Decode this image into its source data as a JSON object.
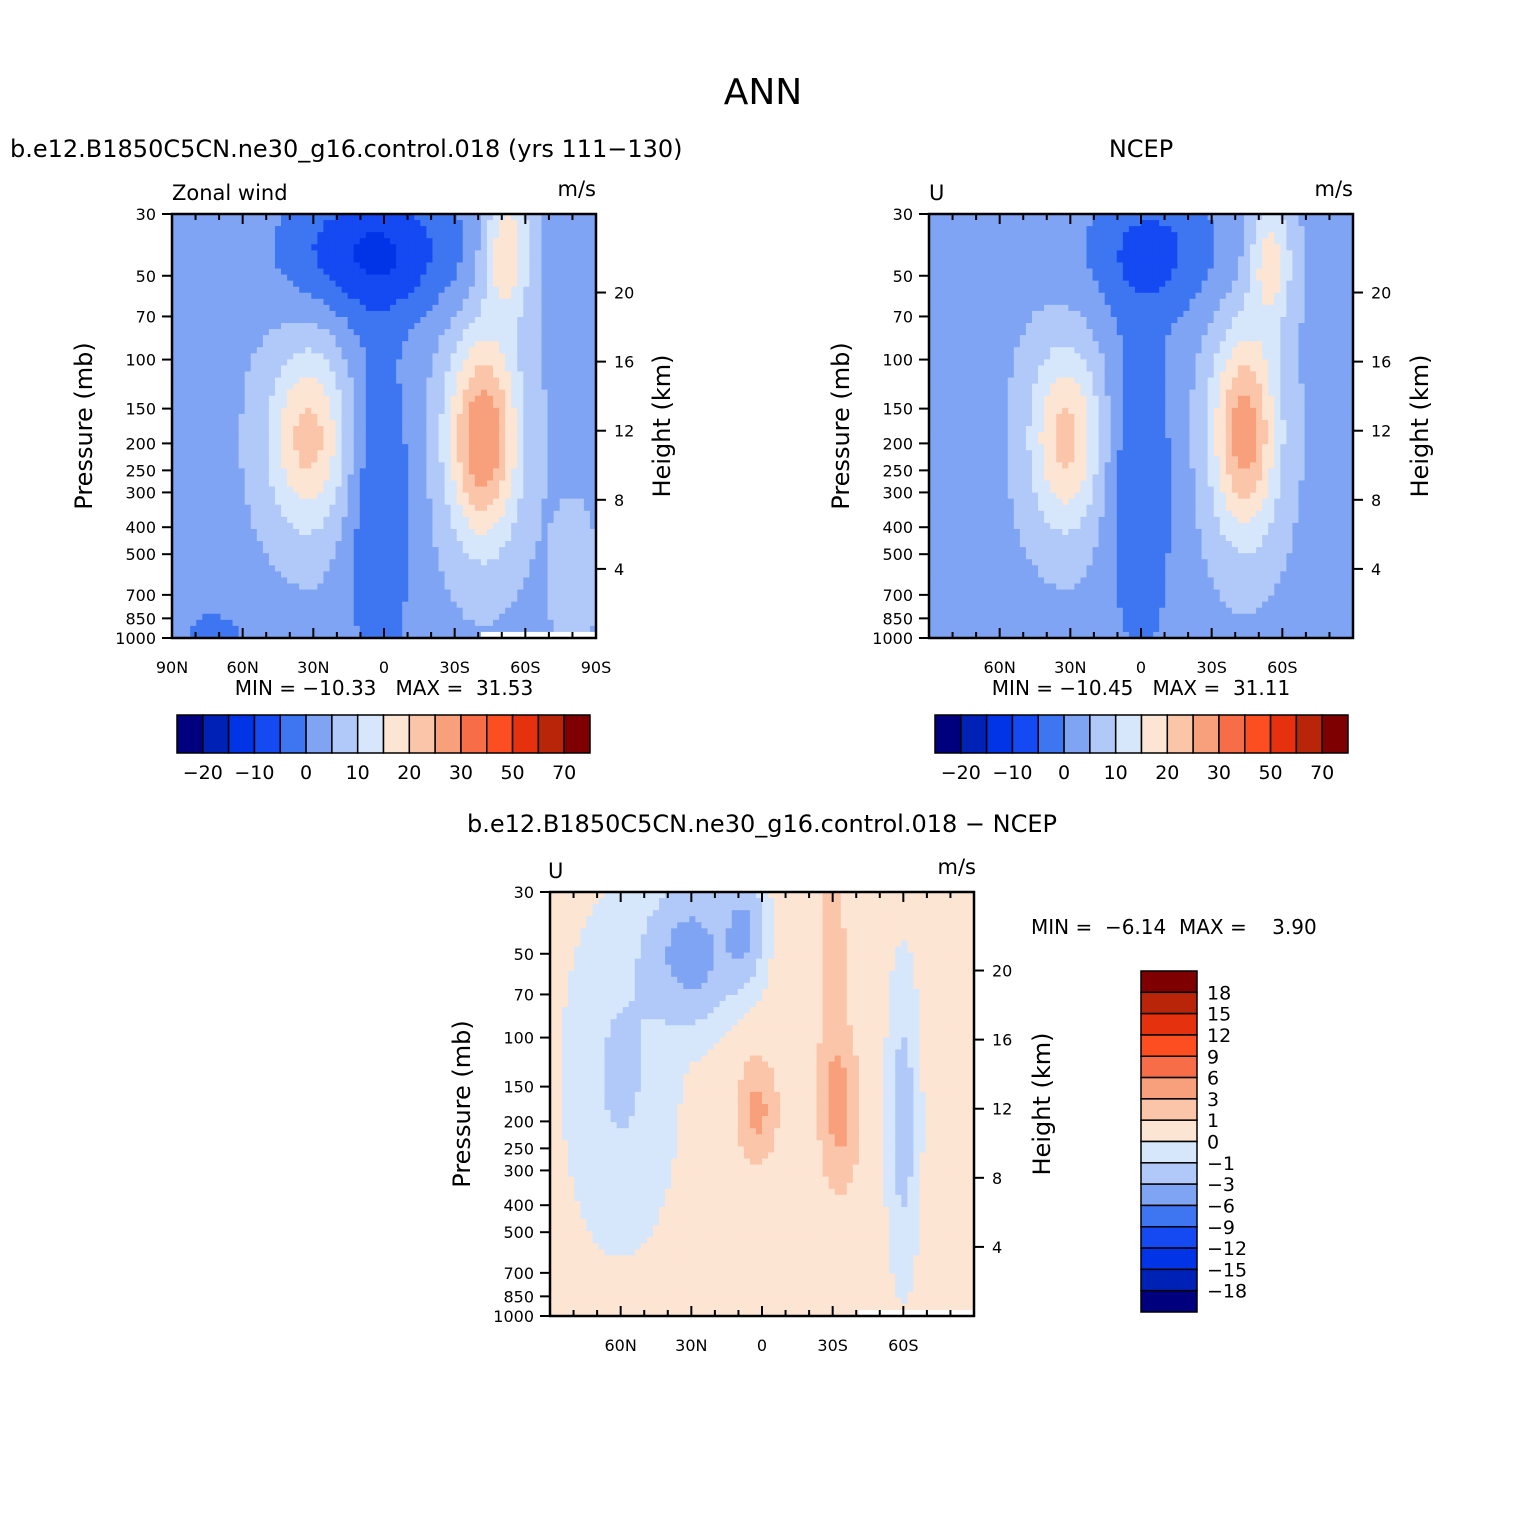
{
  "page": {
    "title": "ANN"
  },
  "palette": {
    "main": [
      "#00007e",
      "#0021b5",
      "#0034e6",
      "#1549f2",
      "#3d76f0",
      "#7fa4f3",
      "#b1c9f8",
      "#d6e6fb",
      "#fde5d4",
      "#fbc5aa",
      "#f8a07c",
      "#f66d47",
      "#fc4e20",
      "#e5310e",
      "#b82509",
      "#7f0000"
    ],
    "diff": [
      "#00007e",
      "#0021b5",
      "#0034e6",
      "#1549f2",
      "#3d76f0",
      "#7fa4f3",
      "#b1c9f8",
      "#d6e6fb",
      "#fde5d4",
      "#fbc5aa",
      "#f8a07c",
      "#f66d47",
      "#fc4e20",
      "#e5310e",
      "#b82509",
      "#7f0000"
    ],
    "missing": "#ffffff"
  },
  "colorbars": {
    "main": {
      "labels": [
        "-20",
        "-10",
        "0",
        "10",
        "20",
        "30",
        "50",
        "70"
      ]
    },
    "diff": {
      "labels": [
        "18",
        "15",
        "12",
        "9",
        "6",
        "3",
        "1",
        "0",
        "-1",
        "-3",
        "-6",
        "-9",
        "-12",
        "-15",
        "-18"
      ]
    }
  },
  "chart_data": [
    {
      "id": "model",
      "type": "heatmap",
      "title": "b.e12.B1850C5CN.ne30_g16.control.018 (yrs 111-130)",
      "left_label": "Zonal wind",
      "right_label": "m/s",
      "xlabel": "",
      "ylabel": "Pressure (mb)",
      "y2label": "Height (km)",
      "x_ticks": [
        "90N",
        "60N",
        "30N",
        "0",
        "30S",
        "60S",
        "90S"
      ],
      "p_ticks": [
        "30",
        "50",
        "70",
        "100",
        "150",
        "200",
        "250",
        "300",
        "400",
        "500",
        "700",
        "850",
        "1000"
      ],
      "h_ticks": [
        "20",
        "16",
        "12",
        "8",
        "4"
      ],
      "stats": "MIN = -10.33   MAX =  31.53",
      "xlim": [
        90,
        -90
      ],
      "ylim_mb": [
        1000,
        30
      ],
      "colorbar": "main"
    },
    {
      "id": "obs",
      "type": "heatmap",
      "title": "NCEP",
      "left_label": "U",
      "right_label": "m/s",
      "xlabel": "",
      "ylabel": "Pressure (mb)",
      "y2label": "Height (km)",
      "x_ticks": [
        "60N",
        "30N",
        "0",
        "30S",
        "60S"
      ],
      "p_ticks": [
        "30",
        "50",
        "70",
        "100",
        "150",
        "200",
        "250",
        "300",
        "400",
        "500",
        "700",
        "850",
        "1000"
      ],
      "h_ticks": [
        "20",
        "16",
        "12",
        "8",
        "4"
      ],
      "stats": "MIN = -10.45   MAX =  31.11",
      "xlim": [
        90,
        -90
      ],
      "ylim_mb": [
        1000,
        30
      ],
      "colorbar": "main"
    },
    {
      "id": "diff",
      "type": "heatmap",
      "title": "b.e12.B1850C5CN.ne30_g16.control.018 - NCEP",
      "left_label": "U",
      "right_label": "m/s",
      "xlabel": "",
      "ylabel": "Pressure (mb)",
      "y2label": "Height (km)",
      "x_ticks": [
        "60N",
        "30N",
        "0",
        "30S",
        "60S"
      ],
      "p_ticks": [
        "30",
        "50",
        "70",
        "100",
        "150",
        "200",
        "250",
        "300",
        "400",
        "500",
        "700",
        "850",
        "1000"
      ],
      "h_ticks": [
        "20",
        "16",
        "12",
        "8",
        "4"
      ],
      "stats": "MIN =  -6.14  MAX =    3.90",
      "xlim": [
        90,
        -90
      ],
      "ylim_mb": [
        1000,
        30
      ],
      "colorbar": "diff"
    }
  ]
}
